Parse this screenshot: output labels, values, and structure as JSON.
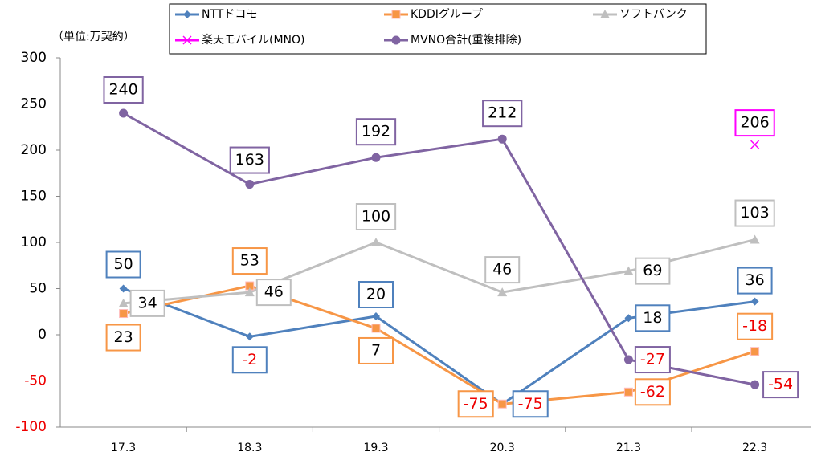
{
  "chart_data": {
    "type": "line",
    "unit_label": "（単位:万契約）",
    "categories": [
      "17.3",
      "18.3",
      "19.3",
      "20.3",
      "21.3",
      "22.3"
    ],
    "series": [
      {
        "name": "NTTドコモ",
        "color": "#4f81bd",
        "marker": "diamond",
        "values": [
          50,
          -2,
          20,
          -75,
          18,
          36
        ]
      },
      {
        "name": "KDDIグループ",
        "color": "#f79646",
        "marker": "square",
        "values": [
          23,
          53,
          7,
          -75,
          -62,
          -18
        ]
      },
      {
        "name": "ソフトバンク",
        "color": "#bfbfbf",
        "marker": "triangle",
        "values": [
          34,
          46,
          100,
          46,
          69,
          103
        ]
      },
      {
        "name": "楽天モバイル(MNO)",
        "color": "#ff00ff",
        "marker": "x",
        "values": [
          null,
          null,
          null,
          null,
          null,
          206
        ]
      },
      {
        "name": "MVNO合計(重複排除)",
        "color": "#8064a2",
        "marker": "circle",
        "values": [
          240,
          163,
          192,
          212,
          -27,
          -54
        ]
      }
    ],
    "ylim": [
      -100,
      300
    ],
    "yticks": [
      -100,
      -50,
      0,
      50,
      100,
      150,
      200,
      250,
      300
    ],
    "grid": false
  }
}
